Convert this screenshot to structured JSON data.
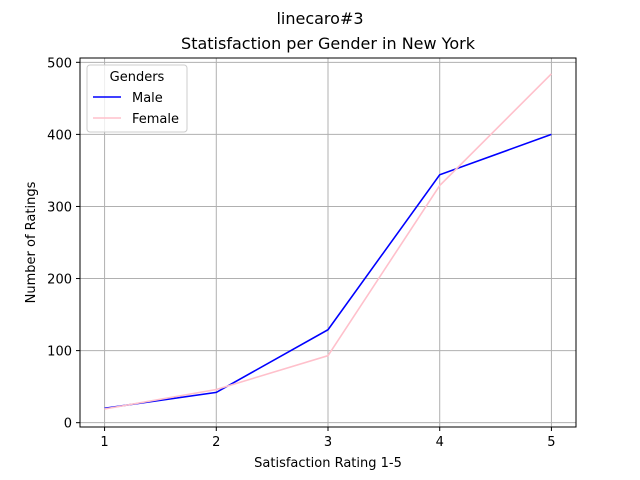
{
  "figure_title": "linecaro#3",
  "chart_data": {
    "type": "line",
    "title": "Statisfaction per Gender in New York",
    "xlabel": "Satisfaction Rating 1-5",
    "ylabel": "Number of Ratings",
    "x": [
      1,
      2,
      3,
      4,
      5
    ],
    "xticks": [
      "1",
      "2",
      "3",
      "4",
      "5"
    ],
    "yticks": [
      "0",
      "100",
      "200",
      "300",
      "400",
      "500"
    ],
    "xlim": [
      0.78,
      5.22
    ],
    "ylim": [
      -6,
      506
    ],
    "grid": true,
    "legend": {
      "title": "Genders",
      "placement": "top-left"
    },
    "series": [
      {
        "name": "Male",
        "color": "#0000ff",
        "values": [
          20,
          42,
          129,
          344,
          400
        ]
      },
      {
        "name": "Female",
        "color": "#ffc0cb",
        "values": [
          19,
          46,
          93,
          329,
          484
        ]
      }
    ]
  }
}
